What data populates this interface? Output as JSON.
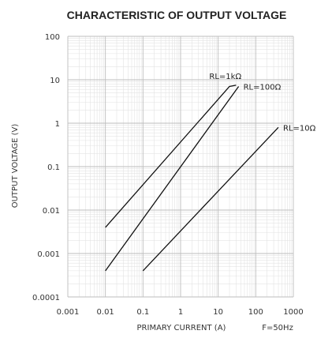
{
  "chart_data": {
    "type": "line",
    "title": "CHARACTERISTIC OF OUTPUT VOLTAGE",
    "xlabel": "PRIMARY CURRENT (A)",
    "ylabel": "OUTPUT VOLTAGE (V)",
    "x_scale": "log",
    "y_scale": "log",
    "xlim": [
      0.001,
      1000
    ],
    "ylim": [
      0.0001,
      100
    ],
    "x_ticks": [
      0.001,
      0.01,
      0.1,
      1,
      10,
      100,
      1000
    ],
    "x_tick_labels": [
      "0.001",
      "0.01",
      "0.1",
      "1",
      "10",
      "100",
      "1000"
    ],
    "y_ticks": [
      0.0001,
      0.001,
      0.01,
      0.1,
      1,
      10,
      100
    ],
    "y_tick_labels": [
      "0.0001",
      "0.001",
      "0.01",
      "0.1",
      "1",
      "10",
      "100"
    ],
    "grid": true,
    "note": "F=50Hz",
    "series": [
      {
        "name": "RL=1kΩ",
        "points": [
          [
            0.01,
            0.004
          ],
          [
            20,
            7
          ],
          [
            30,
            7.5
          ]
        ]
      },
      {
        "name": "RL=100Ω",
        "points": [
          [
            0.01,
            0.0004
          ],
          [
            35,
            7
          ]
        ]
      },
      {
        "name": "RL=10Ω",
        "points": [
          [
            0.1,
            0.0004
          ],
          [
            400,
            0.8
          ]
        ]
      }
    ],
    "colors": {
      "line": "#111111",
      "grid_major": "#bdbdbd",
      "grid_minor": "#e3e3e3",
      "text": "#333333"
    }
  }
}
